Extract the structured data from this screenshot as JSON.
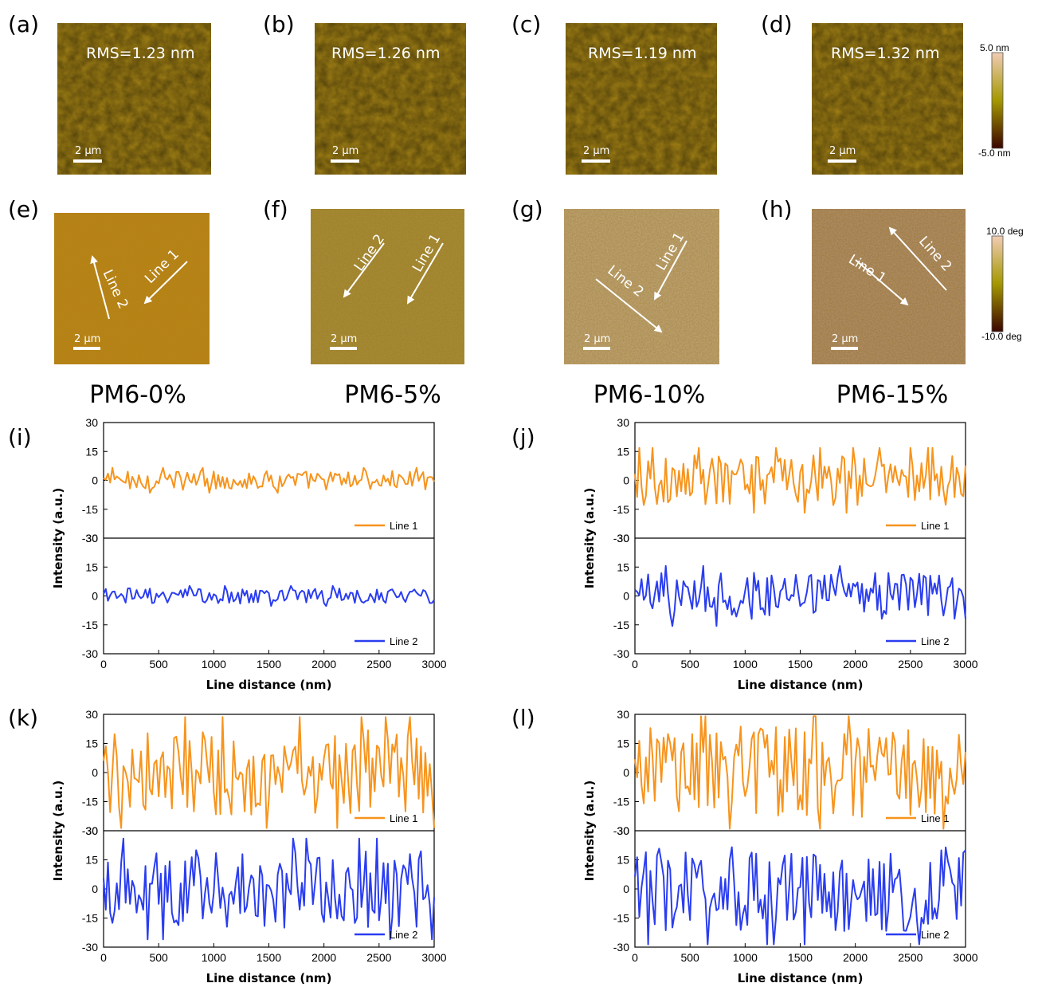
{
  "afm_panels": [
    {
      "label": "(a)",
      "rms": "RMS=1.23 nm",
      "scale": "2 µm"
    },
    {
      "label": "(b)",
      "rms": "RMS=1.26 nm",
      "scale": "2 µm"
    },
    {
      "label": "(c)",
      "rms": "RMS=1.19 nm",
      "scale": "2 µm"
    },
    {
      "label": "(d)",
      "rms": "RMS=1.32 nm",
      "scale": "2 µm"
    }
  ],
  "phase_panels": [
    {
      "label": "(e)",
      "scale": "2 µm",
      "line1": "Line 1",
      "line2": "Line 2"
    },
    {
      "label": "(f)",
      "scale": "2 µm",
      "line1": "Line 1",
      "line2": "Line 2"
    },
    {
      "label": "(g)",
      "scale": "2 µm",
      "line1": "Line 1",
      "line2": "Line 2"
    },
    {
      "label": "(h)",
      "scale": "2 µm",
      "line1": "Line 1",
      "line2": "Line 2"
    }
  ],
  "samples": [
    "PM6-0%",
    "PM6-5%",
    "PM6-10%",
    "PM6-15%"
  ],
  "colorbars": [
    {
      "top": "5.0 nm",
      "bottom": "-5.0 nm"
    },
    {
      "top": "10.0 deg",
      "bottom": "-10.0 deg"
    }
  ],
  "colors": {
    "line1": "#f7941d",
    "line2": "#2a3df0",
    "height_low": "#4a0a00",
    "height_mid": "#a8a000",
    "height_high": "#e8c8a8"
  },
  "chart_data": [
    {
      "panel": "(i)",
      "type": "line",
      "xlabel": "Line distance (nm)",
      "ylabel": "Intensity (a.u.)",
      "xlim": [
        0,
        3000
      ],
      "ylim": [
        -30,
        30
      ],
      "xticks": [
        0,
        500,
        1000,
        1500,
        2000,
        2500,
        3000
      ],
      "yticks": [
        -30,
        -15,
        0,
        15,
        30
      ],
      "series": [
        {
          "name": "Line 1",
          "amplitude": 5
        },
        {
          "name": "Line 2",
          "amplitude": 4
        }
      ]
    },
    {
      "panel": "(j)",
      "type": "line",
      "xlabel": "Line distance (nm)",
      "ylabel": "Intensity (a.u.)",
      "xlim": [
        0,
        3000
      ],
      "ylim": [
        -30,
        30
      ],
      "xticks": [
        0,
        500,
        1000,
        1500,
        2000,
        2500,
        3000
      ],
      "yticks": [
        -30,
        -15,
        0,
        15,
        30
      ],
      "series": [
        {
          "name": "Line 1",
          "amplitude": 13
        },
        {
          "name": "Line 2",
          "amplitude": 12
        }
      ]
    },
    {
      "panel": "(k)",
      "type": "line",
      "xlabel": "Line distance (nm)",
      "ylabel": "Intensity (a.u.)",
      "xlim": [
        0,
        3000
      ],
      "ylim": [
        -30,
        30
      ],
      "xticks": [
        0,
        500,
        1000,
        1500,
        2000,
        2500,
        3000
      ],
      "yticks": [
        -30,
        -15,
        0,
        15,
        30
      ],
      "series": [
        {
          "name": "Line 1",
          "amplitude": 22
        },
        {
          "name": "Line 2",
          "amplitude": 20
        }
      ]
    },
    {
      "panel": "(l)",
      "type": "line",
      "xlabel": "Line distance (nm)",
      "ylabel": "Intensity (a.u.)",
      "xlim": [
        0,
        3000
      ],
      "ylim": [
        -30,
        30
      ],
      "xticks": [
        0,
        500,
        1000,
        1500,
        2000,
        2500,
        3000
      ],
      "yticks": [
        -30,
        -15,
        0,
        15,
        30
      ],
      "series": [
        {
          "name": "Line 1",
          "amplitude": 24
        },
        {
          "name": "Line 2",
          "amplitude": 22
        }
      ]
    }
  ]
}
